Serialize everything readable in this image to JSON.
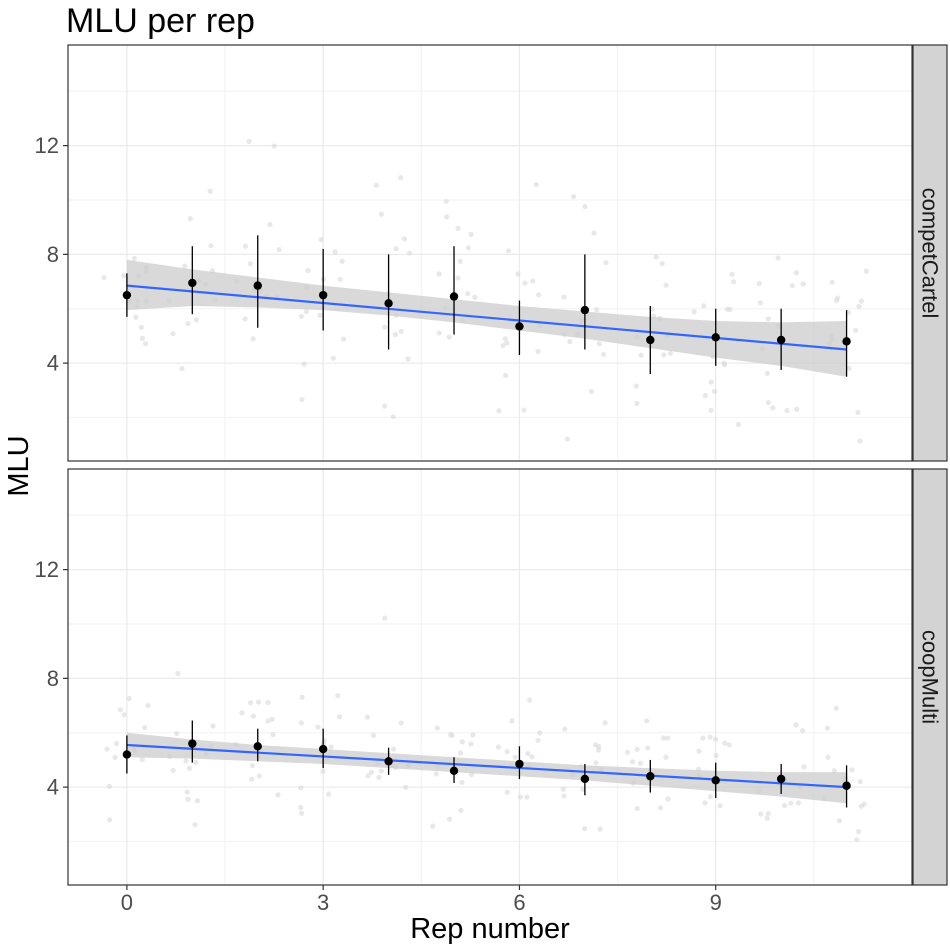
{
  "chart_data": {
    "type": "scatter",
    "title": "MLU per rep",
    "xlabel": "Rep number",
    "ylabel": "MLU",
    "x_ticks": [
      0,
      3,
      6,
      9
    ],
    "y_ticks": [
      4,
      8,
      12
    ],
    "xlim": [
      -0.9,
      12
    ],
    "ylim": [
      0.4,
      15.7
    ],
    "grid": true,
    "colors": {
      "trend_line": "#3366ff",
      "ribbon": "#cccccc",
      "points": "#000000",
      "raw_points": "#d9d9d9",
      "strip": "#d3d3d3"
    },
    "panels": [
      {
        "label": "competCartel",
        "means": [
          {
            "x": 0,
            "y": 6.5,
            "lo": 5.7,
            "hi": 7.3
          },
          {
            "x": 1,
            "y": 6.95,
            "lo": 5.8,
            "hi": 8.3
          },
          {
            "x": 2,
            "y": 6.85,
            "lo": 5.3,
            "hi": 8.7
          },
          {
            "x": 3,
            "y": 6.5,
            "lo": 5.2,
            "hi": 8.2
          },
          {
            "x": 4,
            "y": 6.2,
            "lo": 4.5,
            "hi": 8.0
          },
          {
            "x": 5,
            "y": 6.45,
            "lo": 5.05,
            "hi": 8.3
          },
          {
            "x": 6,
            "y": 5.35,
            "lo": 4.3,
            "hi": 6.3
          },
          {
            "x": 7,
            "y": 5.95,
            "lo": 4.5,
            "hi": 8.0
          },
          {
            "x": 8,
            "y": 4.85,
            "lo": 3.6,
            "hi": 6.1
          },
          {
            "x": 9,
            "y": 4.95,
            "lo": 3.9,
            "hi": 6.0
          },
          {
            "x": 10,
            "y": 4.85,
            "lo": 3.75,
            "hi": 6.0
          },
          {
            "x": 11,
            "y": 4.8,
            "lo": 3.5,
            "hi": 5.95
          }
        ],
        "trend": {
          "x": [
            0,
            11
          ],
          "y": [
            6.85,
            4.5
          ]
        },
        "band": {
          "x": [
            0,
            1,
            2,
            3,
            4,
            5,
            6,
            7,
            8,
            9,
            10,
            11
          ],
          "lower": [
            5.95,
            6.1,
            6.05,
            5.95,
            5.75,
            5.5,
            5.2,
            4.9,
            4.55,
            4.2,
            3.9,
            3.5
          ],
          "upper": [
            7.8,
            7.45,
            7.15,
            6.85,
            6.6,
            6.35,
            6.1,
            5.9,
            5.7,
            5.55,
            5.5,
            5.55
          ]
        }
      },
      {
        "label": "coopMulti",
        "means": [
          {
            "x": 0,
            "y": 5.2,
            "lo": 4.5,
            "hi": 5.9
          },
          {
            "x": 1,
            "y": 5.6,
            "lo": 4.9,
            "hi": 6.45
          },
          {
            "x": 2,
            "y": 5.5,
            "lo": 4.95,
            "hi": 6.15
          },
          {
            "x": 3,
            "y": 5.4,
            "lo": 4.7,
            "hi": 6.15
          },
          {
            "x": 4,
            "y": 4.95,
            "lo": 4.45,
            "hi": 5.45
          },
          {
            "x": 5,
            "y": 4.6,
            "lo": 4.15,
            "hi": 5.1
          },
          {
            "x": 6,
            "y": 4.85,
            "lo": 4.3,
            "hi": 5.5
          },
          {
            "x": 7,
            "y": 4.3,
            "lo": 3.7,
            "hi": 4.85
          },
          {
            "x": 8,
            "y": 4.4,
            "lo": 3.8,
            "hi": 5.0
          },
          {
            "x": 9,
            "y": 4.25,
            "lo": 3.6,
            "hi": 4.9
          },
          {
            "x": 10,
            "y": 4.3,
            "lo": 3.75,
            "hi": 4.85
          },
          {
            "x": 11,
            "y": 4.05,
            "lo": 3.25,
            "hi": 4.8
          }
        ],
        "trend": {
          "x": [
            0,
            11
          ],
          "y": [
            5.55,
            4.0
          ]
        },
        "band": {
          "x": [
            0,
            1,
            2,
            3,
            4,
            5,
            6,
            7,
            8,
            9,
            10,
            11
          ],
          "lower": [
            5.1,
            5.05,
            4.95,
            4.85,
            4.7,
            4.55,
            4.4,
            4.25,
            4.05,
            3.85,
            3.65,
            3.4
          ],
          "upper": [
            6.0,
            5.75,
            5.55,
            5.4,
            5.25,
            5.1,
            4.95,
            4.8,
            4.7,
            4.6,
            4.55,
            4.55
          ]
        }
      }
    ]
  }
}
